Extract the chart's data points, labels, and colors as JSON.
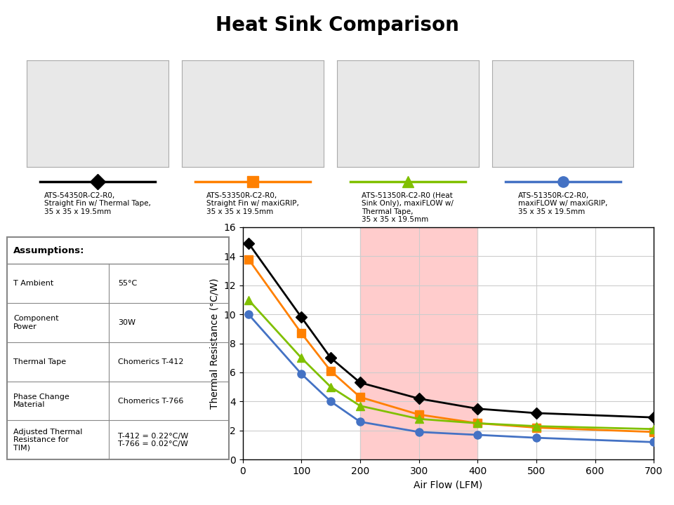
{
  "title": "Heat Sink Comparison",
  "xlabel": "Air Flow (LFM)",
  "ylabel": "Thermal Resistance (°C/W)",
  "xlim": [
    0,
    700
  ],
  "ylim": [
    0,
    16
  ],
  "xticks": [
    0,
    100,
    200,
    300,
    400,
    500,
    600,
    700
  ],
  "yticks": [
    0,
    2,
    4,
    6,
    8,
    10,
    12,
    14,
    16
  ],
  "shaded_region": [
    200,
    400
  ],
  "shaded_color": "#ffcccc",
  "series": [
    {
      "label": "ATS-54350R-C2-R0,\nStraight Fin w/ Thermal Tape,\n35 x 35 x 19.5mm",
      "color": "#000000",
      "marker": "D",
      "markersize": 8,
      "x": [
        10,
        100,
        150,
        200,
        300,
        400,
        500,
        700
      ],
      "y": [
        14.9,
        9.8,
        7.0,
        5.3,
        4.2,
        3.5,
        3.2,
        2.9
      ]
    },
    {
      "label": "ATS-53350R-C2-R0,\nStraight Fin w/ maxiGRIP,\n35 x 35 x 19.5mm",
      "color": "#ff8000",
      "marker": "s",
      "markersize": 8,
      "x": [
        10,
        100,
        150,
        200,
        300,
        400,
        500,
        700
      ],
      "y": [
        13.8,
        8.7,
        6.1,
        4.3,
        3.1,
        2.5,
        2.2,
        1.9
      ]
    },
    {
      "label": "ATS-51350R-C2-R0 (Heat\nSink Only), maxiFLOW w/\nThermal Tape,\n35 x 35 x 19.5mm",
      "color": "#80c000",
      "marker": "^",
      "markersize": 8,
      "x": [
        10,
        100,
        150,
        200,
        300,
        400,
        500,
        700
      ],
      "y": [
        11.0,
        7.0,
        5.0,
        3.7,
        2.8,
        2.5,
        2.3,
        2.1
      ]
    },
    {
      "label": "ATS-51350R-C2-R0,\nmaxiFLOW w/ maxiGRIP,\n35 x 35 x 19.5mm",
      "color": "#4472c4",
      "marker": "o",
      "markersize": 8,
      "x": [
        10,
        100,
        150,
        200,
        300,
        400,
        500,
        700
      ],
      "y": [
        10.0,
        5.9,
        4.0,
        2.6,
        1.9,
        1.7,
        1.5,
        1.2
      ]
    }
  ],
  "table_title": "Assumptions:",
  "table_rows": [
    [
      "T Ambient",
      "55°C"
    ],
    [
      "Component\nPower",
      "30W"
    ],
    [
      "Thermal Tape",
      "Chomerics T-412"
    ],
    [
      "Phase Change\nMaterial",
      "Chomerics T-766"
    ],
    [
      "Adjusted Thermal\nResistance for\nTIM)",
      "T-412 = 0.22°C/W\nT-766 = 0.02°C/W"
    ]
  ],
  "bg_color": "#ffffff"
}
